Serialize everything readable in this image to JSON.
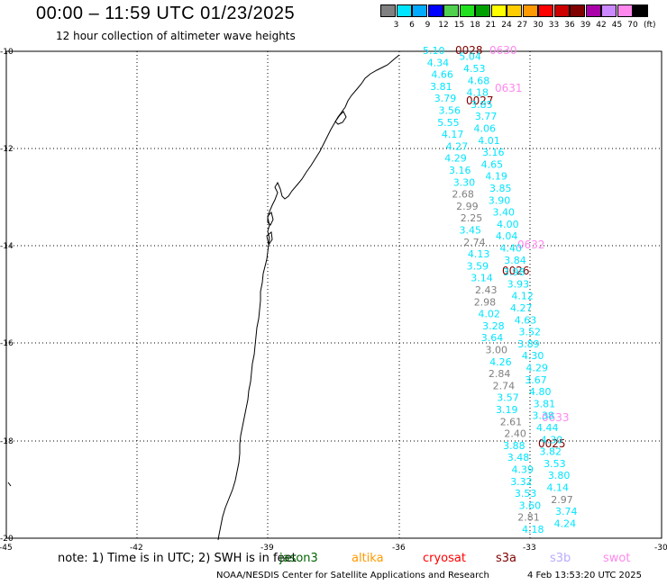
{
  "header": {
    "title": "00:00 – 11:59 UTC 01/23/2025",
    "subtitle": "12 hour collection of altimeter wave heights"
  },
  "colorbar": {
    "unit": "(ft)",
    "colors": [
      "#808080",
      "#00e5ff",
      "#00aaff",
      "#0000ff",
      "#4fd04f",
      "#20e020",
      "#00a000",
      "#ffff00",
      "#ffcc00",
      "#ff9900",
      "#ff0000",
      "#cc0000",
      "#800000",
      "#aa00aa",
      "#cc88ff",
      "#ff88ee",
      "#000000"
    ],
    "labels": [
      "3",
      "6",
      "9",
      "12",
      "15",
      "18",
      "21",
      "24",
      "27",
      "30",
      "33",
      "36",
      "39",
      "42",
      "45",
      "70"
    ]
  },
  "axes": {
    "lat_labels": [
      "-10",
      "-12",
      "-14",
      "-16",
      "-18",
      "-20"
    ],
    "lon_labels": [
      "-45",
      "-42",
      "-39",
      "-36",
      "-33",
      "-30"
    ]
  },
  "passes": [
    {
      "text": "0028",
      "color": "#800000"
    },
    {
      "text": "0630",
      "color": "#ff88ee"
    },
    {
      "text": "0631",
      "color": "#ff88ee"
    },
    {
      "text": "0027",
      "color": "#800000"
    },
    {
      "text": "0632",
      "color": "#ff88ee"
    },
    {
      "text": "0026",
      "color": "#800000"
    },
    {
      "text": "0633",
      "color": "#ff88ee"
    },
    {
      "text": "0025",
      "color": "#800000"
    }
  ],
  "swh_values": [
    {
      "text": "5.10",
      "color": "#00e5ff"
    },
    {
      "text": "5.04",
      "color": "#00e5ff"
    },
    {
      "text": "4.34",
      "color": "#00e5ff"
    },
    {
      "text": "4.53",
      "color": "#00e5ff"
    },
    {
      "text": "4.66",
      "color": "#00e5ff"
    },
    {
      "text": "4.68",
      "color": "#00e5ff"
    },
    {
      "text": "3.81",
      "color": "#00e5ff"
    },
    {
      "text": "4.18",
      "color": "#00e5ff"
    },
    {
      "text": "3.79",
      "color": "#00e5ff"
    },
    {
      "text": "3.85",
      "color": "#00e5ff"
    },
    {
      "text": "3.56",
      "color": "#00e5ff"
    },
    {
      "text": "3.77",
      "color": "#00e5ff"
    },
    {
      "text": "5.55",
      "color": "#00e5ff"
    },
    {
      "text": "4.06",
      "color": "#00e5ff"
    },
    {
      "text": "4.17",
      "color": "#00e5ff"
    },
    {
      "text": "4.01",
      "color": "#00e5ff"
    },
    {
      "text": "4.27",
      "color": "#00e5ff"
    },
    {
      "text": "3.16",
      "color": "#00e5ff"
    },
    {
      "text": "4.29",
      "color": "#00e5ff"
    },
    {
      "text": "4.65",
      "color": "#00e5ff"
    },
    {
      "text": "3.16",
      "color": "#00e5ff"
    },
    {
      "text": "4.19",
      "color": "#00e5ff"
    },
    {
      "text": "3.30",
      "color": "#00e5ff"
    },
    {
      "text": "3.85",
      "color": "#00e5ff"
    },
    {
      "text": "2.68",
      "color": "#808080"
    },
    {
      "text": "3.90",
      "color": "#00e5ff"
    },
    {
      "text": "2.99",
      "color": "#808080"
    },
    {
      "text": "3.40",
      "color": "#00e5ff"
    },
    {
      "text": "2.25",
      "color": "#808080"
    },
    {
      "text": "4.00",
      "color": "#00e5ff"
    },
    {
      "text": "3.45",
      "color": "#00e5ff"
    },
    {
      "text": "4.04",
      "color": "#00e5ff"
    },
    {
      "text": "2.74",
      "color": "#808080"
    },
    {
      "text": "4.40",
      "color": "#00e5ff"
    },
    {
      "text": "4.13",
      "color": "#00e5ff"
    },
    {
      "text": "3.84",
      "color": "#00e5ff"
    },
    {
      "text": "3.59",
      "color": "#00e5ff"
    },
    {
      "text": "3.98",
      "color": "#00e5ff"
    },
    {
      "text": "3.14",
      "color": "#00e5ff"
    },
    {
      "text": "3.93",
      "color": "#00e5ff"
    },
    {
      "text": "2.43",
      "color": "#808080"
    },
    {
      "text": "4.12",
      "color": "#00e5ff"
    },
    {
      "text": "2.98",
      "color": "#808080"
    },
    {
      "text": "4.27",
      "color": "#00e5ff"
    },
    {
      "text": "4.02",
      "color": "#00e5ff"
    },
    {
      "text": "4.63",
      "color": "#00e5ff"
    },
    {
      "text": "3.28",
      "color": "#00e5ff"
    },
    {
      "text": "3.52",
      "color": "#00e5ff"
    },
    {
      "text": "3.64",
      "color": "#00e5ff"
    },
    {
      "text": "3.89",
      "color": "#00e5ff"
    },
    {
      "text": "3.00",
      "color": "#808080"
    },
    {
      "text": "4.30",
      "color": "#00e5ff"
    },
    {
      "text": "4.26",
      "color": "#00e5ff"
    },
    {
      "text": "4.29",
      "color": "#00e5ff"
    },
    {
      "text": "2.84",
      "color": "#808080"
    },
    {
      "text": "3.67",
      "color": "#00e5ff"
    },
    {
      "text": "2.74",
      "color": "#808080"
    },
    {
      "text": "4.80",
      "color": "#00e5ff"
    },
    {
      "text": "3.57",
      "color": "#00e5ff"
    },
    {
      "text": "3.81",
      "color": "#00e5ff"
    },
    {
      "text": "3.19",
      "color": "#00e5ff"
    },
    {
      "text": "3.38",
      "color": "#00e5ff"
    },
    {
      "text": "2.61",
      "color": "#808080"
    },
    {
      "text": "4.44",
      "color": "#00e5ff"
    },
    {
      "text": "2.40",
      "color": "#808080"
    },
    {
      "text": "4.30",
      "color": "#00e5ff"
    },
    {
      "text": "3.88",
      "color": "#00e5ff"
    },
    {
      "text": "3.82",
      "color": "#00e5ff"
    },
    {
      "text": "3.48",
      "color": "#00e5ff"
    },
    {
      "text": "3.53",
      "color": "#00e5ff"
    },
    {
      "text": "4.39",
      "color": "#00e5ff"
    },
    {
      "text": "3.80",
      "color": "#00e5ff"
    },
    {
      "text": "3.32",
      "color": "#00e5ff"
    },
    {
      "text": "4.14",
      "color": "#00e5ff"
    },
    {
      "text": "3.53",
      "color": "#00e5ff"
    },
    {
      "text": "2.97",
      "color": "#808080"
    },
    {
      "text": "3.60",
      "color": "#00e5ff"
    },
    {
      "text": "3.74",
      "color": "#00e5ff"
    },
    {
      "text": "2.81",
      "color": "#808080"
    },
    {
      "text": "4.24",
      "color": "#00e5ff"
    },
    {
      "text": "4.18",
      "color": "#00e5ff"
    }
  ],
  "footer": {
    "note": "note:  1) Time is in UTC; 2) SWH is in feet",
    "missions": [
      {
        "name": "jason3",
        "color": "#006400"
      },
      {
        "name": "altika",
        "color": "#ff9900"
      },
      {
        "name": "cryosat",
        "color": "#ff0000"
      },
      {
        "name": "s3a",
        "color": "#800000"
      },
      {
        "name": "s3b",
        "color": "#bbaaff"
      },
      {
        "name": "swot",
        "color": "#ff88ee"
      }
    ],
    "credit": "NOAA/NESDIS Center for Satellite Applications and Research",
    "timestamp": "4 Feb 13:53:20 UTC 2025"
  }
}
